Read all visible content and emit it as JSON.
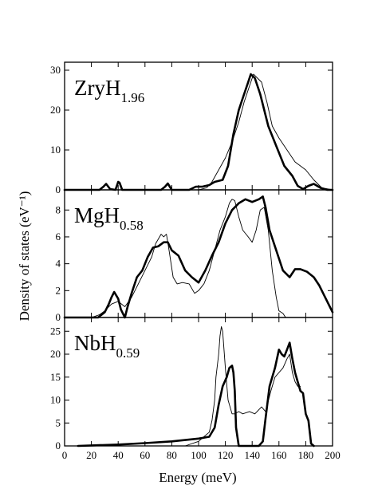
{
  "chart_data": [
    {
      "type": "line",
      "title": "ZryH",
      "title_subscript": "1.96",
      "xlabel": "Energy (meV)",
      "ylabel": "Density of states (eV⁻¹)",
      "xlim": [
        0,
        200
      ],
      "ylim": [
        0,
        32
      ],
      "yticks": [
        0,
        10,
        20,
        30
      ],
      "xticks": [
        0,
        20,
        40,
        60,
        80,
        100,
        120,
        140,
        160,
        180,
        200
      ],
      "grid": false,
      "series": [
        {
          "style": "thick",
          "x": [
            0,
            26,
            29,
            31,
            34,
            38,
            40,
            41,
            43,
            72,
            75,
            77,
            80,
            93,
            98,
            103,
            108,
            112,
            118,
            122,
            126,
            130,
            134,
            137,
            139,
            142,
            146,
            152,
            158,
            164,
            170,
            174,
            178,
            182,
            186,
            191,
            196,
            200
          ],
          "y": [
            0,
            0,
            0.8,
            1.5,
            0.2,
            0,
            2.0,
            1.8,
            0,
            0,
            0.8,
            1.6,
            0,
            0,
            0.8,
            0.8,
            1.2,
            2.0,
            2.5,
            6.0,
            14.0,
            20.0,
            24.0,
            27.0,
            29.0,
            28.0,
            24.0,
            16.0,
            11.0,
            6.0,
            3.5,
            1.0,
            0.2,
            1.0,
            1.5,
            0.5,
            0,
            0
          ]
        },
        {
          "style": "thin",
          "x": [
            0,
            100,
            106,
            110,
            115,
            120,
            125,
            130,
            134,
            138,
            141,
            144,
            147,
            151,
            155,
            160,
            166,
            172,
            180,
            186,
            192,
            200
          ],
          "y": [
            0,
            0,
            0.5,
            2.0,
            5.0,
            8.0,
            12.0,
            17.0,
            22.0,
            26.0,
            29.0,
            28.0,
            27.0,
            22.0,
            16.0,
            13.0,
            10.0,
            7.0,
            5.0,
            2.5,
            0.5,
            0
          ]
        }
      ]
    },
    {
      "type": "line",
      "title": "MgH",
      "title_subscript": "0.58",
      "xlim": [
        0,
        200
      ],
      "ylim": [
        0,
        9.5
      ],
      "yticks": [
        0,
        2,
        4,
        6,
        8
      ],
      "xticks": [
        0,
        20,
        40,
        60,
        80,
        100,
        120,
        140,
        160,
        180,
        200
      ],
      "grid": false,
      "series": [
        {
          "style": "thick",
          "x": [
            0,
            25,
            30,
            33,
            35,
            37,
            40,
            42,
            45,
            47,
            50,
            54,
            58,
            62,
            66,
            70,
            74,
            77,
            80,
            85,
            90,
            95,
            100,
            105,
            110,
            115,
            120,
            125,
            130,
            135,
            140,
            145,
            148,
            150,
            153,
            158,
            163,
            168,
            172,
            176,
            181,
            186,
            190,
            194,
            198,
            200
          ],
          "y": [
            0,
            0,
            0.4,
            1.0,
            1.5,
            1.9,
            1.4,
            0.6,
            0,
            0.8,
            1.8,
            3.0,
            3.5,
            4.5,
            5.2,
            5.3,
            5.6,
            5.6,
            5.0,
            4.6,
            3.5,
            3.0,
            2.6,
            3.5,
            4.6,
            5.6,
            7.0,
            8.0,
            8.5,
            8.8,
            8.6,
            8.8,
            9.0,
            8.2,
            6.5,
            5.0,
            3.5,
            3.0,
            3.6,
            3.6,
            3.4,
            3.0,
            2.4,
            1.6,
            0.8,
            0.4
          ]
        },
        {
          "style": "thin",
          "x": [
            0,
            20,
            26,
            30,
            35,
            40,
            45,
            50,
            55,
            60,
            65,
            68,
            72,
            74,
            76,
            78,
            81,
            84,
            88,
            93,
            97,
            100,
            104,
            108,
            112,
            116,
            120,
            123,
            125,
            127,
            130,
            133,
            137,
            140,
            143,
            146,
            149,
            152,
            155,
            158,
            160,
            163,
            165,
            200
          ],
          "y": [
            0,
            0,
            0.2,
            0.5,
            1.0,
            1.2,
            0.8,
            1.5,
            2.5,
            3.5,
            4.5,
            5.5,
            6.2,
            6.0,
            6.2,
            5.0,
            3.0,
            2.5,
            2.6,
            2.5,
            1.8,
            2.0,
            2.5,
            3.5,
            5.0,
            6.5,
            7.5,
            8.5,
            8.8,
            8.7,
            7.5,
            6.5,
            6.0,
            5.6,
            6.5,
            8.0,
            8.2,
            6.5,
            3.5,
            1.5,
            0.5,
            0.3,
            0,
            0
          ]
        }
      ]
    },
    {
      "type": "line",
      "title": "NbH",
      "title_subscript": "0.59",
      "xlim": [
        0,
        200
      ],
      "ylim": [
        0,
        28
      ],
      "yticks": [
        0,
        5,
        10,
        15,
        20,
        25
      ],
      "xticks": [
        0,
        20,
        40,
        60,
        80,
        100,
        120,
        140,
        160,
        180,
        200
      ],
      "grid": false,
      "series": [
        {
          "style": "thick",
          "x": [
            10,
            20,
            40,
            60,
            80,
            100,
            108,
            112,
            115,
            118,
            121,
            123,
            125,
            126,
            127,
            128,
            130,
            145,
            148,
            150,
            153,
            157,
            160,
            162,
            164,
            166,
            168,
            170,
            172,
            174,
            176,
            178,
            180,
            182,
            184,
            186
          ],
          "y": [
            0,
            0.1,
            0.3,
            0.6,
            1.0,
            1.6,
            2.0,
            4.0,
            9.0,
            13.0,
            15.0,
            17.0,
            17.5,
            16.0,
            12.0,
            4.0,
            0,
            0,
            1.0,
            6.0,
            13.0,
            17.0,
            21.0,
            20.0,
            19.5,
            21.0,
            22.5,
            19.0,
            16.0,
            14.0,
            12.0,
            11.5,
            7.0,
            5.5,
            0.5,
            0
          ]
        },
        {
          "style": "thin",
          "x": [
            0,
            90,
            100,
            104,
            108,
            110,
            112,
            113,
            115,
            116,
            117,
            118,
            120,
            122,
            124,
            125,
            127,
            130,
            133,
            138,
            142,
            147,
            150,
            154,
            157,
            160,
            163,
            166,
            168,
            170,
            172,
            174,
            176
          ],
          "y": [
            0,
            0,
            1.0,
            2.0,
            3.0,
            5.5,
            10.0,
            15.0,
            20.0,
            24.0,
            26.0,
            25.0,
            17.0,
            10.0,
            8.0,
            7.0,
            7.0,
            7.5,
            7.0,
            7.5,
            7.0,
            8.5,
            7.5,
            12.0,
            15.0,
            16.0,
            17.0,
            19.0,
            20.0,
            16.0,
            14.0,
            13.0,
            13.0
          ]
        }
      ]
    }
  ]
}
